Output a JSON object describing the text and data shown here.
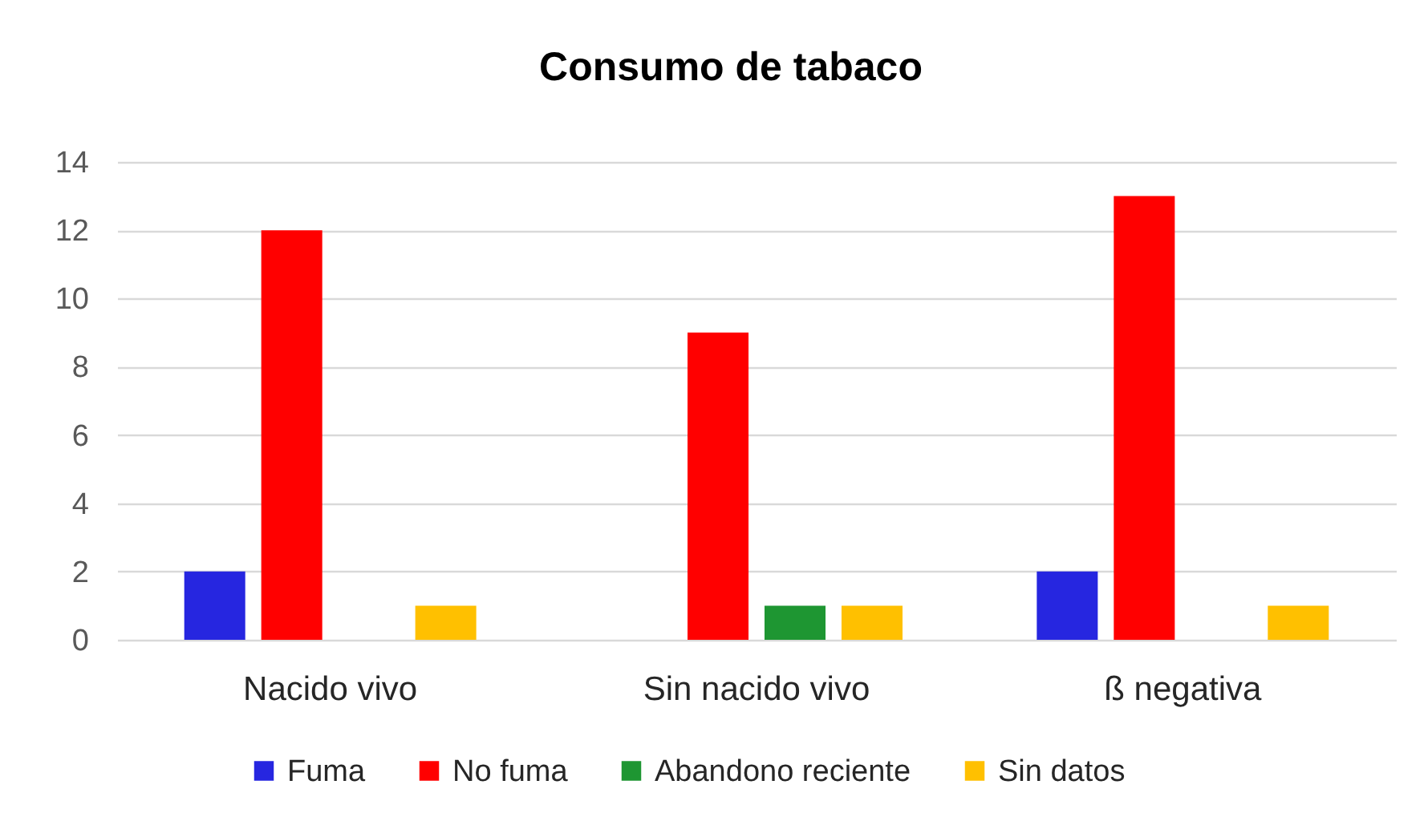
{
  "chart_data": {
    "type": "bar",
    "title": "Consumo de tabaco",
    "categories": [
      "Nacido vivo",
      "Sin nacido vivo",
      "ß negativa"
    ],
    "series": [
      {
        "name": "Fuma",
        "color": "#2626e0",
        "values": [
          2,
          0,
          2
        ]
      },
      {
        "name": "No fuma",
        "color": "#ff0000",
        "values": [
          12,
          9,
          13
        ]
      },
      {
        "name": "Abandono reciente",
        "color": "#1e9632",
        "values": [
          0,
          1,
          0
        ]
      },
      {
        "name": "Sin datos",
        "color": "#ffc000",
        "values": [
          1,
          1,
          1
        ]
      }
    ],
    "ylim": [
      0,
      14
    ],
    "yticks": [
      0,
      2,
      4,
      6,
      8,
      10,
      12,
      14
    ],
    "grid": "y",
    "legend": "bottom"
  }
}
